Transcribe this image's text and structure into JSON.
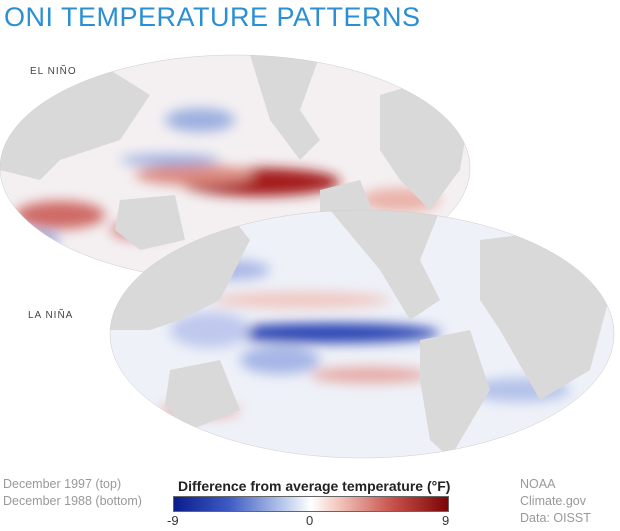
{
  "title": "ONI TEMPERATURE PATTERNS",
  "maps": [
    {
      "label": "EL NIÑO",
      "period": "December 1997 (top)"
    },
    {
      "label": "LA NIÑA",
      "period": "December 1988 (bottom)"
    }
  ],
  "legend": {
    "title": "Difference from average temperature (°F)",
    "min": "-9",
    "mid": "0",
    "max": "9",
    "colors": {
      "cold": "#0a1c8c",
      "neutral": "#ffffff",
      "warm": "#7a0505"
    }
  },
  "credits": {
    "source": "NOAA Climate.gov",
    "data": "Data: OISST"
  },
  "colors": {
    "title": "#2b8fd3",
    "land": "#d9d9d9"
  }
}
